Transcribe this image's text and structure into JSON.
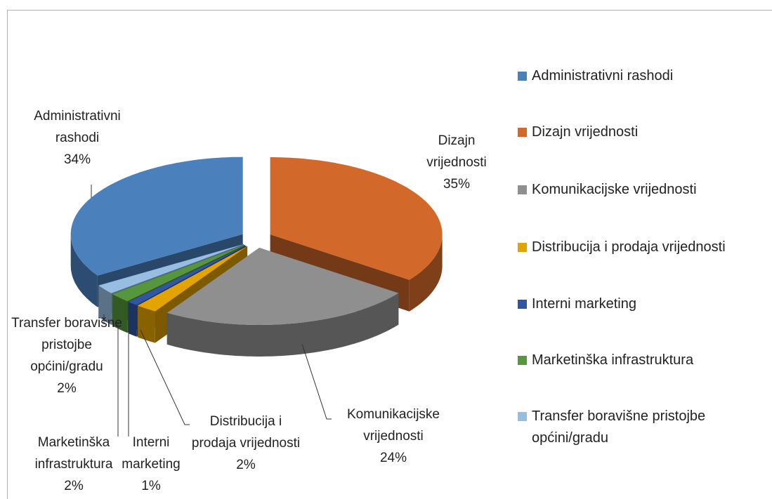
{
  "chart_data": {
    "type": "pie3d",
    "categories": [
      "Administrativni rashodi",
      "Dizajn vrijednosti",
      "Komunikacijske vrijednosti",
      "Distribucija i prodaja vrijednosti",
      "Interni marketing",
      "Marketinška infrastruktura",
      "Transfer boravišne pristojbe općini/gradu"
    ],
    "values": [
      34,
      35,
      24,
      2,
      1,
      2,
      2
    ],
    "value_labels": [
      "34%",
      "35%",
      "24%",
      "2%",
      "1%",
      "2%",
      "2%"
    ],
    "colors": [
      "#4a81bd",
      "#d2692a",
      "#8f8f8f",
      "#e3a300",
      "#2f55a4",
      "#56963c",
      "#98bde3"
    ],
    "legend": "right"
  }
}
